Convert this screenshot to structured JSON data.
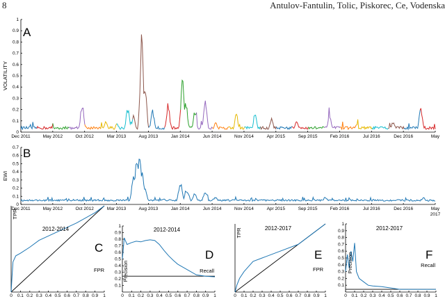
{
  "header": {
    "page_number": "8",
    "running_head": "Antulov-Fantulin, Tolic, Piskorec, Ce, Vodenska"
  },
  "colors": {
    "ewi": "#1f77b4",
    "curve": "#1f77b4",
    "baseline": "#000000",
    "volatility_palette": [
      "#1f77b4",
      "#d62728",
      "#2ca02c",
      "#9467bd",
      "#ff7f0e",
      "#e6b800",
      "#17becf",
      "#8c564b"
    ]
  },
  "chart_data": [
    {
      "type": "line",
      "panel": "A",
      "ylabel": "VOLATILITY",
      "ylim": [
        0,
        1
      ],
      "yticks": [
        "0",
        "0.1",
        "0.2",
        "0.3",
        "0.4",
        "0.5",
        "0.6",
        "0.7",
        "0.8",
        "0.9",
        "1"
      ],
      "xticks": [
        "Dec 2011",
        "May 2012",
        "Oct 2012",
        "Mar 2013",
        "Aug 2013",
        "Jan 2014",
        "Jun 2014",
        "Nov 2014",
        "Apr 2015",
        "Sep 2015",
        "Feb 2016",
        "Jul 2016",
        "Dec 2016",
        "May"
      ],
      "peaks": [
        {
          "t": 0.148,
          "y": 0.27
        },
        {
          "t": 0.205,
          "y": 0.1
        },
        {
          "t": 0.232,
          "y": 0.09
        },
        {
          "t": 0.258,
          "y": 0.23
        },
        {
          "t": 0.272,
          "y": 0.15
        },
        {
          "t": 0.292,
          "y": 0.9
        },
        {
          "t": 0.3,
          "y": 0.42
        },
        {
          "t": 0.318,
          "y": 0.2
        },
        {
          "t": 0.355,
          "y": 0.25
        },
        {
          "t": 0.39,
          "y": 0.48
        },
        {
          "t": 0.398,
          "y": 0.28
        },
        {
          "t": 0.42,
          "y": 0.2
        },
        {
          "t": 0.445,
          "y": 0.28
        },
        {
          "t": 0.47,
          "y": 0.1
        },
        {
          "t": 0.52,
          "y": 0.17
        },
        {
          "t": 0.565,
          "y": 0.17
        },
        {
          "t": 0.605,
          "y": 0.13
        },
        {
          "t": 0.665,
          "y": 0.11
        },
        {
          "t": 0.745,
          "y": 0.17
        },
        {
          "t": 0.81,
          "y": 0.08
        },
        {
          "t": 0.898,
          "y": 0.1
        },
        {
          "t": 0.965,
          "y": 0.23
        }
      ]
    },
    {
      "type": "line",
      "panel": "B",
      "ylabel": "EWI",
      "ylim": [
        0,
        0.7
      ],
      "yticks": [
        "0",
        "0.1",
        "0.2",
        "0.3",
        "0.4",
        "0.5",
        "0.6",
        "0.7"
      ],
      "xticks": [
        "Dec 2011",
        "May 2012",
        "Oct 2012",
        "Mar 2013",
        "Aug 2013",
        "Jan 2014",
        "Jun 2014",
        "Nov 2014",
        "Apr 2015",
        "Sep 2015",
        "Feb 2016",
        "Jul 2016",
        "Dec 2016",
        "May"
      ],
      "xtick_extra": "2017",
      "peaks": [
        {
          "t": 0.272,
          "y": 0.35
        },
        {
          "t": 0.28,
          "y": 0.6
        },
        {
          "t": 0.286,
          "y": 0.63
        },
        {
          "t": 0.292,
          "y": 0.4
        },
        {
          "t": 0.3,
          "y": 0.2
        },
        {
          "t": 0.345,
          "y": 0.07
        },
        {
          "t": 0.385,
          "y": 0.27
        },
        {
          "t": 0.4,
          "y": 0.2
        },
        {
          "t": 0.42,
          "y": 0.15
        },
        {
          "t": 0.445,
          "y": 0.18
        },
        {
          "t": 0.47,
          "y": 0.1
        },
        {
          "t": 0.54,
          "y": 0.05
        },
        {
          "t": 0.64,
          "y": 0.05
        },
        {
          "t": 0.735,
          "y": 0.1
        },
        {
          "t": 0.79,
          "y": 0.06
        },
        {
          "t": 0.9,
          "y": 0.05
        },
        {
          "t": 0.972,
          "y": 0.09
        }
      ]
    },
    {
      "type": "line",
      "panel": "C",
      "title": "2012-2014",
      "xlabel": "FPR",
      "ylabel": "TPR",
      "xlim": [
        0,
        1
      ],
      "ylim": [
        0,
        1
      ],
      "xticks": [
        "0",
        "0.1",
        "0.2",
        "0.3",
        "0.4",
        "0.5",
        "0.6",
        "0.7",
        "0.8",
        "0.9",
        "1"
      ],
      "x": [
        0,
        0.01,
        0.02,
        0.05,
        0.1,
        0.2,
        0.3,
        0.5,
        0.7,
        0.9,
        1.0
      ],
      "y": [
        0,
        0.18,
        0.35,
        0.42,
        0.45,
        0.52,
        0.6,
        0.7,
        0.8,
        0.92,
        1.0
      ]
    },
    {
      "type": "line",
      "panel": "D",
      "title": "2012-2014",
      "xlabel": "Recall",
      "ylabel": "Precision",
      "xlim": [
        0,
        1
      ],
      "ylim": [
        0,
        1
      ],
      "yticks": [
        "0.1",
        "0.2",
        "0.3",
        "0.4",
        "0.5",
        "0.6",
        "0.7",
        "0.8",
        "0.9",
        "1"
      ],
      "xticks": [
        "0",
        "0.1",
        "0.2",
        "0.3",
        "0.4",
        "0.5",
        "0.6",
        "0.7",
        "0.8",
        "0.9",
        "1"
      ],
      "baseline": 0.24,
      "x": [
        0,
        0.02,
        0.05,
        0.1,
        0.15,
        0.2,
        0.25,
        0.3,
        0.35,
        0.4,
        0.45,
        0.5,
        0.55,
        0.6,
        0.7,
        0.8,
        0.9,
        1.0
      ],
      "y": [
        0.5,
        0.82,
        0.72,
        0.75,
        0.77,
        0.76,
        0.78,
        0.79,
        0.78,
        0.72,
        0.63,
        0.55,
        0.48,
        0.42,
        0.34,
        0.26,
        0.24,
        0.23
      ]
    },
    {
      "type": "line",
      "panel": "E",
      "title": "2012-2017",
      "xlabel": "FPR",
      "ylabel": "TPR",
      "xlim": [
        0,
        1
      ],
      "ylim": [
        0,
        1
      ],
      "xticks": [
        "0",
        "0.1",
        "0.2",
        "0.3",
        "0.4",
        "0.5",
        "0.6",
        "0.7",
        "0.8",
        "0.9",
        "1"
      ],
      "x": [
        0,
        0.02,
        0.05,
        0.1,
        0.2,
        0.3,
        0.5,
        0.7,
        0.9,
        1.0
      ],
      "y": [
        0,
        0.1,
        0.2,
        0.3,
        0.45,
        0.5,
        0.6,
        0.7,
        0.9,
        1.0
      ]
    },
    {
      "type": "line",
      "panel": "F",
      "title": "2012-2017",
      "xlabel": "Recall",
      "ylabel": "Precision",
      "xlim": [
        0,
        1
      ],
      "ylim": [
        0,
        1
      ],
      "yticks": [
        "0.1",
        "0.2",
        "0.3",
        "0.4",
        "0.5",
        "0.6",
        "0.7",
        "0.8",
        "0.9",
        "1"
      ],
      "xticks": [
        "0",
        "0.1",
        "0.2",
        "0.3",
        "0.4",
        "0.5",
        "0.6",
        "0.7",
        "0.8",
        "0.9",
        "1"
      ],
      "baseline": 0.04,
      "x": [
        0,
        0.02,
        0.04,
        0.06,
        0.08,
        0.1,
        0.12,
        0.15,
        0.2,
        0.25,
        0.3,
        0.4,
        0.5,
        0.6,
        0.8,
        1.0
      ],
      "y": [
        0.3,
        0.55,
        0.35,
        0.6,
        0.45,
        0.72,
        0.3,
        0.2,
        0.15,
        0.1,
        0.09,
        0.08,
        0.06,
        0.04,
        0.04,
        0.04
      ]
    }
  ]
}
